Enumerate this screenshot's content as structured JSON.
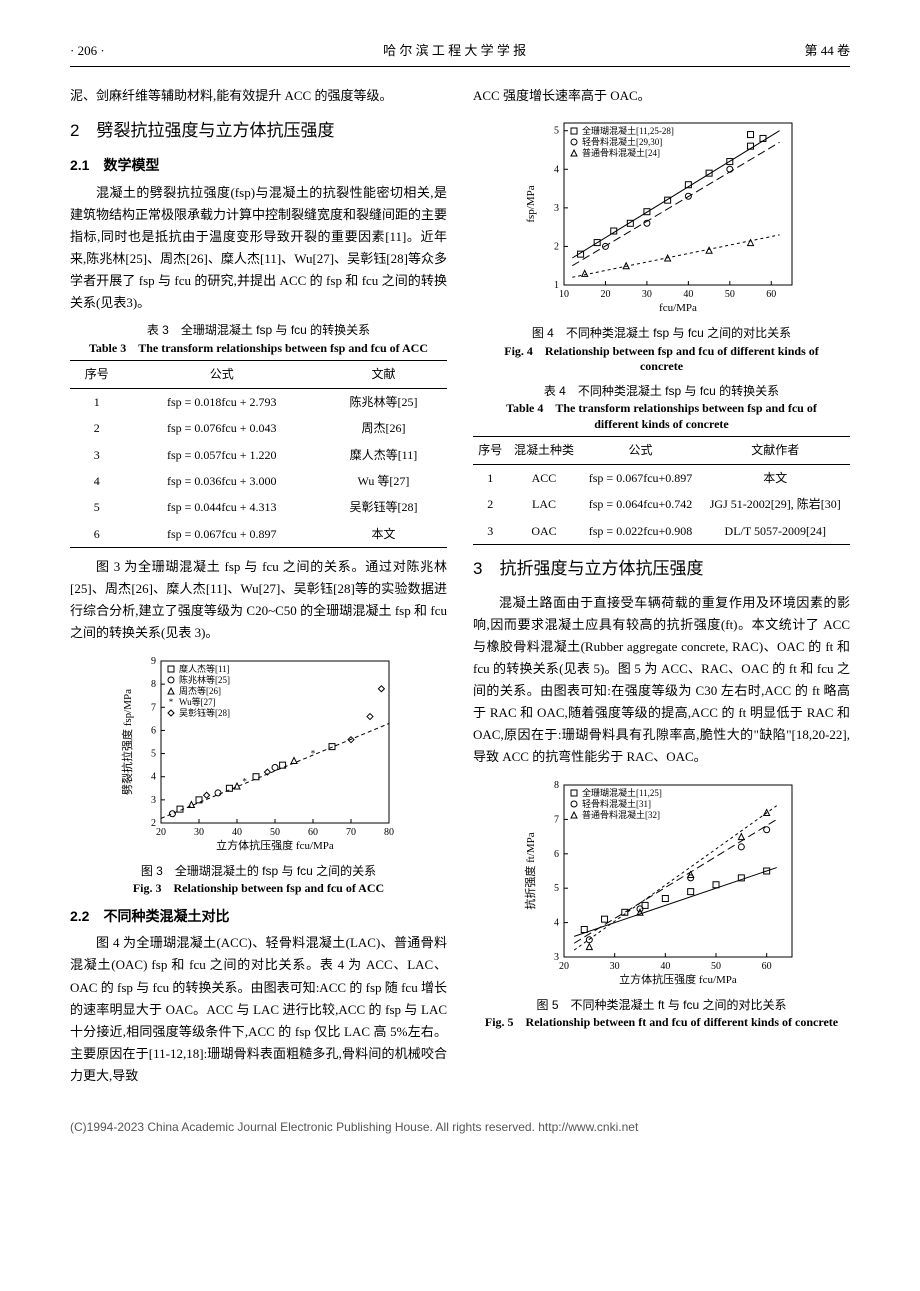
{
  "header": {
    "page": "· 206 ·",
    "journal": "哈 尔 滨 工 程 大 学 学 报",
    "vol": "第 44 卷"
  },
  "col_left": {
    "intro": "泥、剑麻纤维等辅助材料,能有效提升 ACC 的强度等级。",
    "sec2": "2　劈裂抗拉强度与立方体抗压强度",
    "sec21": "2.1　数学模型",
    "p21": "混凝土的劈裂抗拉强度(fsp)与混凝土的抗裂性能密切相关,是建筑物结构正常极限承载力计算中控制裂缝宽度和裂缝间距的主要指标,同时也是抵抗由于温度变形导致开裂的重要因素[11]。近年来,陈兆林[25]、周杰[26]、糜人杰[11]、Wu[27]、吴彰钰[28]等众多学者开展了 fsp 与 fcu 的研究,并提出 ACC 的 fsp 和 fcu 之间的转换关系(见表3)。",
    "tbl3_cn": "表 3　全珊瑚混凝土 fsp 与 fcu 的转换关系",
    "tbl3_en": "Table 3　The transform relationships between fsp and fcu of ACC",
    "tbl3_head": [
      "序号",
      "公式",
      "文献"
    ],
    "tbl3_rows": [
      [
        "1",
        "fsp = 0.018fcu + 2.793",
        "陈兆林等[25]"
      ],
      [
        "2",
        "fsp = 0.076fcu + 0.043",
        "周杰[26]"
      ],
      [
        "3",
        "fsp = 0.057fcu + 1.220",
        "糜人杰等[11]"
      ],
      [
        "4",
        "fsp = 0.036fcu + 3.000",
        "Wu 等[27]"
      ],
      [
        "5",
        "fsp = 0.044fcu + 4.313",
        "吴彰钰等[28]"
      ],
      [
        "6",
        "fsp = 0.067fcu + 0.897",
        "本文"
      ]
    ],
    "p_after_t3": "图 3 为全珊瑚混凝土 fsp 与 fcu 之间的关系。通过对陈兆林[25]、周杰[26]、糜人杰[11]、Wu[27]、吴彰钰[28]等的实验数据进行综合分析,建立了强度等级为 C20~C50 的全珊瑚混凝土 fsp 和 fcu 之间的转换关系(见表 3)。",
    "fig3": {
      "type": "scatter",
      "xlabel": "立方体抗压强度 fcu/MPa",
      "ylabel": "劈裂抗拉强度 fsp/MPa",
      "xlim": [
        20,
        80
      ],
      "xticks": [
        20,
        30,
        40,
        50,
        60,
        70,
        80
      ],
      "ylim": [
        2,
        9
      ],
      "yticks": [
        2,
        3,
        4,
        5,
        6,
        7,
        8,
        9
      ],
      "legend": [
        "糜人杰等[11]",
        "陈兆林等[25]",
        "周杰等[26]",
        "Wu等[27]",
        "吴彰钰等[28]"
      ],
      "legend_markers": [
        "square",
        "circle",
        "triangle",
        "star",
        "diamond"
      ],
      "fit_line": {
        "x1": 20,
        "y1": 2.2,
        "x2": 80,
        "y2": 6.3,
        "style": "dashed"
      },
      "points": [
        {
          "x": 23,
          "y": 2.4,
          "m": "circle"
        },
        {
          "x": 25,
          "y": 2.6,
          "m": "square"
        },
        {
          "x": 28,
          "y": 2.8,
          "m": "triangle"
        },
        {
          "x": 30,
          "y": 3.0,
          "m": "square"
        },
        {
          "x": 32,
          "y": 3.2,
          "m": "diamond"
        },
        {
          "x": 35,
          "y": 3.3,
          "m": "circle"
        },
        {
          "x": 38,
          "y": 3.5,
          "m": "square"
        },
        {
          "x": 40,
          "y": 3.6,
          "m": "triangle"
        },
        {
          "x": 42,
          "y": 3.8,
          "m": "star"
        },
        {
          "x": 45,
          "y": 4.0,
          "m": "square"
        },
        {
          "x": 48,
          "y": 4.2,
          "m": "diamond"
        },
        {
          "x": 50,
          "y": 4.4,
          "m": "circle"
        },
        {
          "x": 52,
          "y": 4.5,
          "m": "square"
        },
        {
          "x": 55,
          "y": 4.7,
          "m": "triangle"
        },
        {
          "x": 60,
          "y": 5.0,
          "m": "star"
        },
        {
          "x": 65,
          "y": 5.3,
          "m": "square"
        },
        {
          "x": 70,
          "y": 5.6,
          "m": "diamond"
        },
        {
          "x": 75,
          "y": 6.6,
          "m": "diamond"
        },
        {
          "x": 78,
          "y": 7.8,
          "m": "diamond"
        }
      ],
      "colors": {
        "axis": "#000",
        "marker": "#000",
        "line": "#000",
        "bg": "#fff"
      }
    },
    "fig3_cn": "图 3　全珊瑚混凝土的 fsp 与 fcu 之间的关系",
    "fig3_en": "Fig. 3　Relationship between fsp and fcu of ACC",
    "sec22": "2.2　不同种类混凝土对比",
    "p22": "图 4 为全珊瑚混凝土(ACC)、轻骨料混凝土(LAC)、普通骨料混凝土(OAC) fsp 和 fcu 之间的对比关系。表 4 为 ACC、LAC、OAC 的 fsp 与 fcu 的转换关系。由图表可知:ACC 的 fsp 随 fcu 增长的速率明显大于 OAC。ACC 与 LAC 进行比较,ACC 的 fsp 与 LAC 十分接近,相同强度等级条件下,ACC 的 fsp 仅比 LAC 高 5%左右。主要原因在于[11-12,18]:珊瑚骨料表面粗糙多孔,骨料间的机械咬合力更大,导致"
  },
  "col_right": {
    "top": "ACC 强度增长速率高于 OAC。",
    "fig4": {
      "type": "scatter",
      "xlabel": "fcu/MPa",
      "ylabel": "fsp/MPa",
      "xlim": [
        10,
        65
      ],
      "xticks": [
        10,
        20,
        30,
        40,
        50,
        60
      ],
      "ylim": [
        1,
        5.2
      ],
      "yticks": [
        1,
        2,
        3,
        4,
        5
      ],
      "legend": [
        "全珊瑚混凝土[11,25-28]",
        "轻骨料混凝土[29,30]",
        "普通骨料混凝土[24]"
      ],
      "legend_markers": [
        "square",
        "circle",
        "triangle"
      ],
      "lines": [
        {
          "x1": 12,
          "y1": 1.7,
          "x2": 62,
          "y2": 5.0,
          "style": "solid"
        },
        {
          "x1": 12,
          "y1": 1.5,
          "x2": 62,
          "y2": 4.7,
          "style": "longdash"
        },
        {
          "x1": 12,
          "y1": 1.2,
          "x2": 62,
          "y2": 2.3,
          "style": "dashed"
        }
      ],
      "points": [
        {
          "x": 14,
          "y": 1.8,
          "m": "square"
        },
        {
          "x": 18,
          "y": 2.1,
          "m": "square"
        },
        {
          "x": 22,
          "y": 2.4,
          "m": "square"
        },
        {
          "x": 26,
          "y": 2.6,
          "m": "square"
        },
        {
          "x": 30,
          "y": 2.9,
          "m": "square"
        },
        {
          "x": 35,
          "y": 3.2,
          "m": "square"
        },
        {
          "x": 40,
          "y": 3.6,
          "m": "square"
        },
        {
          "x": 45,
          "y": 3.9,
          "m": "square"
        },
        {
          "x": 50,
          "y": 4.2,
          "m": "square"
        },
        {
          "x": 55,
          "y": 4.6,
          "m": "square"
        },
        {
          "x": 55,
          "y": 4.9,
          "m": "square"
        },
        {
          "x": 58,
          "y": 4.8,
          "m": "square"
        },
        {
          "x": 20,
          "y": 2.0,
          "m": "circle"
        },
        {
          "x": 30,
          "y": 2.6,
          "m": "circle"
        },
        {
          "x": 40,
          "y": 3.3,
          "m": "circle"
        },
        {
          "x": 50,
          "y": 4.0,
          "m": "circle"
        },
        {
          "x": 15,
          "y": 1.3,
          "m": "triangle"
        },
        {
          "x": 25,
          "y": 1.5,
          "m": "triangle"
        },
        {
          "x": 35,
          "y": 1.7,
          "m": "triangle"
        },
        {
          "x": 45,
          "y": 1.9,
          "m": "triangle"
        },
        {
          "x": 55,
          "y": 2.1,
          "m": "triangle"
        }
      ],
      "colors": {
        "axis": "#000",
        "marker": "#000",
        "line": "#000",
        "bg": "#fff"
      }
    },
    "fig4_cn": "图 4　不同种类混凝土 fsp 与 fcu 之间的对比关系",
    "fig4_en": "Fig. 4　Relationship between fsp and fcu of different kinds of concrete",
    "tbl4_cn": "表 4　不同种类混凝土 fsp 与 fcu 的转换关系",
    "tbl4_en": "Table 4　The transform relationships between fsp and fcu of different kinds of concrete",
    "tbl4_head": [
      "序号",
      "混凝土种类",
      "公式",
      "文献作者"
    ],
    "tbl4_rows": [
      [
        "1",
        "ACC",
        "fsp = 0.067fcu+0.897",
        "本文"
      ],
      [
        "2",
        "LAC",
        "fsp = 0.064fcu+0.742",
        "JGJ 51-2002[29], 陈岩[30]"
      ],
      [
        "3",
        "OAC",
        "fsp = 0.022fcu+0.908",
        "DL/T 5057-2009[24]"
      ]
    ],
    "sec3": "3　抗折强度与立方体抗压强度",
    "p3": "混凝土路面由于直接受车辆荷载的重复作用及环境因素的影响,因而要求混凝土应具有较高的抗折强度(ft)。本文统计了 ACC 与橡胶骨料混凝土(Rubber aggregate concrete, RAC)、OAC 的 ft 和 fcu 的转换关系(见表 5)。图 5 为 ACC、RAC、OAC 的 ft 和 fcu 之间的关系。由图表可知:在强度等级为 C30 左右时,ACC 的 ft 略高于 RAC 和 OAC,随着强度等级的提高,ACC 的 ft 明显低于 RAC 和 OAC,原因在于:珊瑚骨料具有孔隙率高,脆性大的\"缺陷\"[18,20-22],导致 ACC 的抗弯性能劣于 RAC、OAC。",
    "fig5": {
      "type": "scatter",
      "xlabel": "立方体抗压强度 fcu/MPa",
      "ylabel": "抗折强度 ft/MPa",
      "xlim": [
        20,
        65
      ],
      "xticks": [
        20,
        30,
        40,
        50,
        60
      ],
      "ylim": [
        3,
        8
      ],
      "yticks": [
        3,
        4,
        5,
        6,
        7,
        8
      ],
      "legend": [
        "全珊瑚混凝土[11,25]",
        "轻骨料混凝土[31]",
        "普通骨料混凝土[32]"
      ],
      "legend_markers": [
        "square",
        "circle",
        "triangle"
      ],
      "lines": [
        {
          "x1": 22,
          "y1": 3.6,
          "x2": 62,
          "y2": 5.6,
          "style": "solid"
        },
        {
          "x1": 22,
          "y1": 3.4,
          "x2": 62,
          "y2": 7.0,
          "style": "longdash"
        },
        {
          "x1": 22,
          "y1": 3.2,
          "x2": 62,
          "y2": 7.4,
          "style": "dashed"
        }
      ],
      "points": [
        {
          "x": 24,
          "y": 3.8,
          "m": "square"
        },
        {
          "x": 28,
          "y": 4.1,
          "m": "square"
        },
        {
          "x": 32,
          "y": 4.3,
          "m": "square"
        },
        {
          "x": 36,
          "y": 4.5,
          "m": "square"
        },
        {
          "x": 40,
          "y": 4.7,
          "m": "square"
        },
        {
          "x": 45,
          "y": 4.9,
          "m": "square"
        },
        {
          "x": 50,
          "y": 5.1,
          "m": "square"
        },
        {
          "x": 55,
          "y": 5.3,
          "m": "square"
        },
        {
          "x": 60,
          "y": 5.5,
          "m": "square"
        },
        {
          "x": 25,
          "y": 3.5,
          "m": "circle"
        },
        {
          "x": 35,
          "y": 4.4,
          "m": "circle"
        },
        {
          "x": 45,
          "y": 5.3,
          "m": "circle"
        },
        {
          "x": 55,
          "y": 6.2,
          "m": "circle"
        },
        {
          "x": 60,
          "y": 6.7,
          "m": "circle"
        },
        {
          "x": 25,
          "y": 3.3,
          "m": "triangle"
        },
        {
          "x": 35,
          "y": 4.3,
          "m": "triangle"
        },
        {
          "x": 45,
          "y": 5.4,
          "m": "triangle"
        },
        {
          "x": 55,
          "y": 6.5,
          "m": "triangle"
        },
        {
          "x": 60,
          "y": 7.2,
          "m": "triangle"
        }
      ],
      "colors": {
        "axis": "#000",
        "marker": "#000",
        "line": "#000",
        "bg": "#fff"
      }
    },
    "fig5_cn": "图 5　不同种类混凝土 ft 与 fcu 之间的对比关系",
    "fig5_en": "Fig. 5　Relationship between ft and fcu of different kinds of concrete"
  },
  "footer": "(C)1994-2023 China Academic Journal Electronic Publishing House. All rights reserved.    http://www.cnki.net"
}
